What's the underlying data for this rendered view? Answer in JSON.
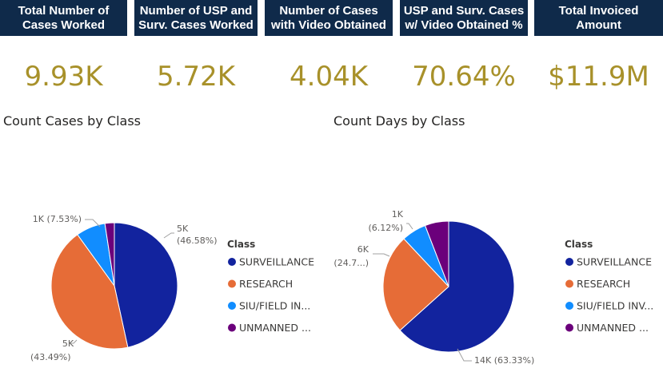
{
  "kpis": [
    {
      "header": "Total Number of\nCases Worked",
      "value": "9.93K"
    },
    {
      "header": "Number of USP and\nSurv. Cases Worked",
      "value": "5.72K"
    },
    {
      "header": "Number of Cases\nwith Video Obtained",
      "value": "4.04K"
    },
    {
      "header": "USP and Surv. Cases\nw/ Video Obtained %",
      "value": "70.64%"
    },
    {
      "header": "Total Invoiced\nAmount",
      "value": "$11.9M"
    }
  ],
  "chart_data": [
    {
      "type": "pie",
      "title": "Count Cases by Class",
      "legend_title": "Class",
      "legend_position": "right",
      "categories": [
        "SURVEILLANCE",
        "RESEARCH",
        "SIU/FIELD IN...",
        "UNMANNED ..."
      ],
      "values": [
        46.58,
        43.49,
        7.53,
        2.4
      ],
      "colors": [
        "#12239e",
        "#e66c37",
        "#118dff",
        "#6b007b"
      ],
      "data_labels": [
        {
          "value": "5K",
          "percent": "(46.58%)"
        },
        {
          "value": "5K",
          "percent": "(43.49%)"
        },
        {
          "value": "1K (7.53%)",
          "percent": ""
        }
      ]
    },
    {
      "type": "pie",
      "title": "Count Days by Class",
      "legend_title": "Class",
      "legend_position": "right",
      "categories": [
        "SURVEILLANCE",
        "RESEARCH",
        "SIU/FIELD INV...",
        "UNMANNED ..."
      ],
      "values": [
        63.33,
        24.7,
        6.12,
        5.85
      ],
      "colors": [
        "#12239e",
        "#e66c37",
        "#118dff",
        "#6b007b"
      ],
      "data_labels": [
        {
          "value": "14K (63.33%)",
          "percent": ""
        },
        {
          "value": "6K",
          "percent": "(24.7...)"
        },
        {
          "value": "1K",
          "percent": "(6.12%)"
        }
      ]
    }
  ]
}
